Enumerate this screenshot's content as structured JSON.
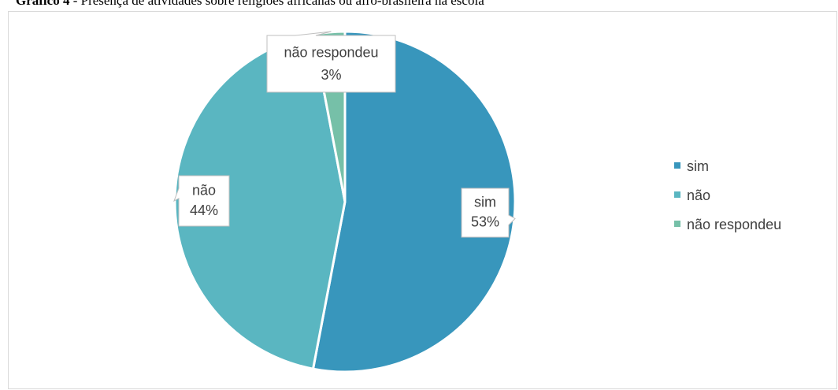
{
  "title": {
    "bold": "Gráfico 4",
    "rest": " - Presença de atividades sobre religiões africanas ou afro-brasileira na escola"
  },
  "chart_data": {
    "type": "pie",
    "categories": [
      "sim",
      "não",
      "não respondeu"
    ],
    "values": [
      53,
      44,
      3
    ],
    "labels": [
      "53%",
      "44%",
      "3%"
    ],
    "colors": [
      "#3896bc",
      "#5ab6c1",
      "#76c0a8"
    ],
    "legend": {
      "position": "right",
      "entries": [
        "sim",
        "não",
        "não respondeu"
      ]
    }
  }
}
